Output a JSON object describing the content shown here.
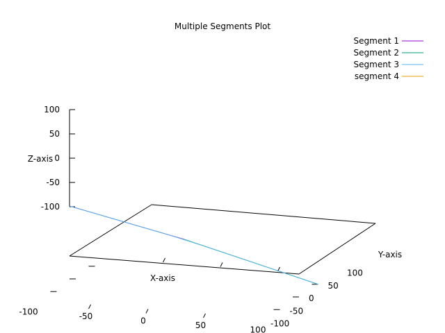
{
  "chart_data": {
    "type": "line",
    "projection": "3d",
    "title": "Multiple Segments Plot",
    "xlabel": "X-axis",
    "ylabel": "Y-axis",
    "zlabel": "Z-axis",
    "xlim": [
      -100,
      100
    ],
    "ylim": [
      -100,
      100
    ],
    "zlim": [
      -100,
      100
    ],
    "x_ticks": [
      "-100",
      "-50",
      "0",
      "50",
      "100"
    ],
    "y_ticks": [
      "-100",
      "-50",
      "0",
      "50",
      "100"
    ],
    "z_ticks": [
      "100",
      "50",
      "0",
      "-50",
      "-100"
    ],
    "legend_position": "top-right",
    "grid": false,
    "series": [
      {
        "name": "Segment 1",
        "color": "#9400d3",
        "points": [
          [
            -100,
            0,
            50
          ],
          [
            0,
            0,
            0
          ]
        ]
      },
      {
        "name": "Segment 2",
        "color": "#009e73",
        "points": [
          [
            0,
            0,
            0
          ],
          [
            100,
            50,
            -100
          ]
        ]
      },
      {
        "name": "Segment 3",
        "color": "#56b4e9",
        "points": [
          [
            -100,
            0,
            50
          ],
          [
            -50,
            0,
            25
          ],
          [
            0,
            0,
            0
          ],
          [
            50,
            25,
            -50
          ],
          [
            100,
            50,
            -100
          ]
        ]
      },
      {
        "name": "segment 4",
        "color": "#e69f00",
        "points": []
      }
    ]
  }
}
